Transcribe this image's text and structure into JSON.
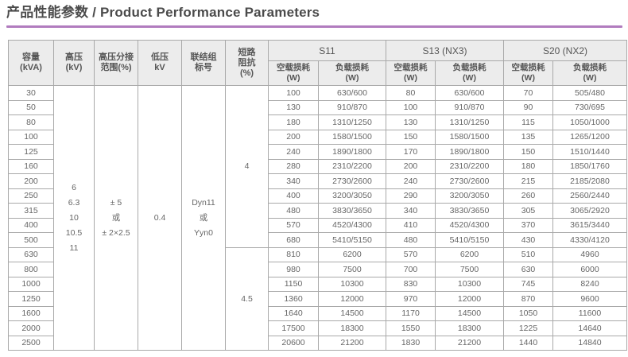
{
  "page": {
    "title_zh": "产品性能参数",
    "title_divider": " / ",
    "title_en": "Product Performance Parameters",
    "accent_color": "#b17cbe",
    "header_bg": "#ececec"
  },
  "table": {
    "param_headers": [
      {
        "id": "capacity",
        "lines": [
          "容量",
          "(kVA)"
        ]
      },
      {
        "id": "hv",
        "lines": [
          "高压",
          "(kV)"
        ]
      },
      {
        "id": "tap-range",
        "lines": [
          "高压分接",
          "范围(%)"
        ]
      },
      {
        "id": "lv",
        "lines": [
          "低压",
          "kV"
        ]
      },
      {
        "id": "vector-group",
        "lines": [
          "联结组",
          "标号"
        ]
      },
      {
        "id": "impedance",
        "lines": [
          "短路",
          "阻抗",
          "(%)"
        ]
      }
    ],
    "series_groups": [
      {
        "id": "s11",
        "label": "S11"
      },
      {
        "id": "s13",
        "label": "S13 (NX3)"
      },
      {
        "id": "s20",
        "label": "S20 (NX2)"
      }
    ],
    "loss_headers": [
      {
        "id": "no-load-loss",
        "lines": [
          "空载损耗",
          "(W)"
        ]
      },
      {
        "id": "load-loss",
        "lines": [
          "负载损耗",
          "(W)"
        ]
      }
    ],
    "shared_cells": {
      "hv_values": [
        "6",
        "6.3",
        "10",
        "10.5",
        "11"
      ],
      "tap_range_values": [
        "± 5",
        "或",
        "± 2×2.5"
      ],
      "lv_value": "0.4",
      "vector_group_values": [
        "Dyn11",
        "或",
        "Yyn0"
      ],
      "impedance_values": [
        {
          "value": "4",
          "row_span": 11
        },
        {
          "value": "4.5",
          "row_span": 7
        }
      ]
    },
    "rows": [
      {
        "kva": "30",
        "s11_no_load": "100",
        "s11_load": "630/600",
        "s13_no_load": "80",
        "s13_load": "630/600",
        "s20_no_load": "70",
        "s20_load": "505/480"
      },
      {
        "kva": "50",
        "s11_no_load": "130",
        "s11_load": "910/870",
        "s13_no_load": "100",
        "s13_load": "910/870",
        "s20_no_load": "90",
        "s20_load": "730/695"
      },
      {
        "kva": "80",
        "s11_no_load": "180",
        "s11_load": "1310/1250",
        "s13_no_load": "130",
        "s13_load": "1310/1250",
        "s20_no_load": "115",
        "s20_load": "1050/1000"
      },
      {
        "kva": "100",
        "s11_no_load": "200",
        "s11_load": "1580/1500",
        "s13_no_load": "150",
        "s13_load": "1580/1500",
        "s20_no_load": "135",
        "s20_load": "1265/1200"
      },
      {
        "kva": "125",
        "s11_no_load": "240",
        "s11_load": "1890/1800",
        "s13_no_load": "170",
        "s13_load": "1890/1800",
        "s20_no_load": "150",
        "s20_load": "1510/1440"
      },
      {
        "kva": "160",
        "s11_no_load": "280",
        "s11_load": "2310/2200",
        "s13_no_load": "200",
        "s13_load": "2310/2200",
        "s20_no_load": "180",
        "s20_load": "1850/1760"
      },
      {
        "kva": "200",
        "s11_no_load": "340",
        "s11_load": "2730/2600",
        "s13_no_load": "240",
        "s13_load": "2730/2600",
        "s20_no_load": "215",
        "s20_load": "2185/2080"
      },
      {
        "kva": "250",
        "s11_no_load": "400",
        "s11_load": "3200/3050",
        "s13_no_load": "290",
        "s13_load": "3200/3050",
        "s20_no_load": "260",
        "s20_load": "2560/2440"
      },
      {
        "kva": "315",
        "s11_no_load": "480",
        "s11_load": "3830/3650",
        "s13_no_load": "340",
        "s13_load": "3830/3650",
        "s20_no_load": "305",
        "s20_load": "3065/2920"
      },
      {
        "kva": "400",
        "s11_no_load": "570",
        "s11_load": "4520/4300",
        "s13_no_load": "410",
        "s13_load": "4520/4300",
        "s20_no_load": "370",
        "s20_load": "3615/3440"
      },
      {
        "kva": "500",
        "s11_no_load": "680",
        "s11_load": "5410/5150",
        "s13_no_load": "480",
        "s13_load": "5410/5150",
        "s20_no_load": "430",
        "s20_load": "4330/4120"
      },
      {
        "kva": "630",
        "s11_no_load": "810",
        "s11_load": "6200",
        "s13_no_load": "570",
        "s13_load": "6200",
        "s20_no_load": "510",
        "s20_load": "4960"
      },
      {
        "kva": "800",
        "s11_no_load": "980",
        "s11_load": "7500",
        "s13_no_load": "700",
        "s13_load": "7500",
        "s20_no_load": "630",
        "s20_load": "6000"
      },
      {
        "kva": "1000",
        "s11_no_load": "1150",
        "s11_load": "10300",
        "s13_no_load": "830",
        "s13_load": "10300",
        "s20_no_load": "745",
        "s20_load": "8240"
      },
      {
        "kva": "1250",
        "s11_no_load": "1360",
        "s11_load": "12000",
        "s13_no_load": "970",
        "s13_load": "12000",
        "s20_no_load": "870",
        "s20_load": "9600"
      },
      {
        "kva": "1600",
        "s11_no_load": "1640",
        "s11_load": "14500",
        "s13_no_load": "1170",
        "s13_load": "14500",
        "s20_no_load": "1050",
        "s20_load": "11600"
      },
      {
        "kva": "2000",
        "s11_no_load": "17500",
        "s11_load": "18300",
        "s13_no_load": "1550",
        "s13_load": "18300",
        "s20_no_load": "1225",
        "s20_load": "14640"
      },
      {
        "kva": "2500",
        "s11_no_load": "20600",
        "s11_load": "21200",
        "s13_no_load": "1830",
        "s13_load": "21200",
        "s20_no_load": "1440",
        "s20_load": "14840"
      }
    ]
  }
}
